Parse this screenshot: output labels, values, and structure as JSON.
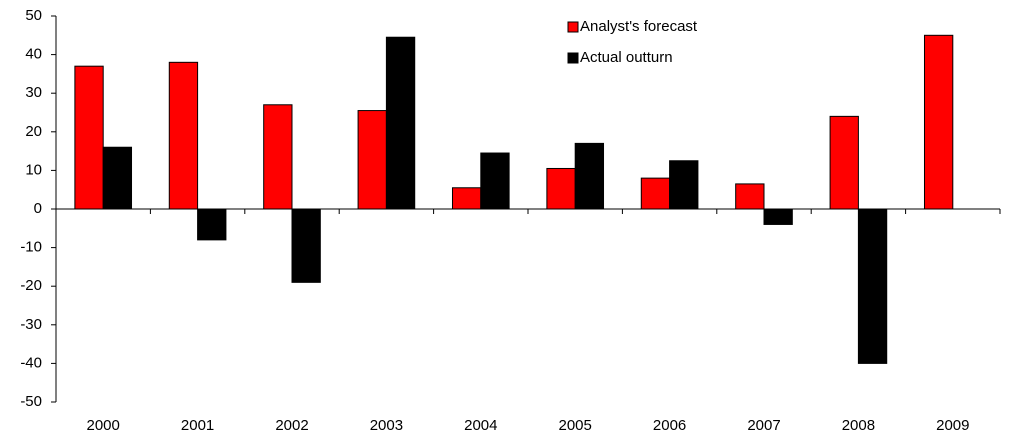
{
  "chart_data": {
    "type": "bar",
    "categories": [
      "2000",
      "2001",
      "2002",
      "2003",
      "2004",
      "2005",
      "2006",
      "2007",
      "2008",
      "2009"
    ],
    "series": [
      {
        "name": "Analyst's forecast",
        "color": "#ff0000",
        "values": [
          37,
          38,
          27,
          25.5,
          5.5,
          10.5,
          8,
          6.5,
          24,
          45
        ]
      },
      {
        "name": "Actual outturn",
        "color": "#000000",
        "values": [
          16,
          -8,
          -19,
          44.5,
          14.5,
          17,
          12.5,
          -4,
          -40,
          null
        ]
      }
    ],
    "ylim": [
      -50,
      50
    ],
    "yticks": [
      -50,
      -40,
      -30,
      -20,
      -10,
      0,
      10,
      20,
      30,
      40,
      50
    ],
    "legend": "upper center"
  }
}
